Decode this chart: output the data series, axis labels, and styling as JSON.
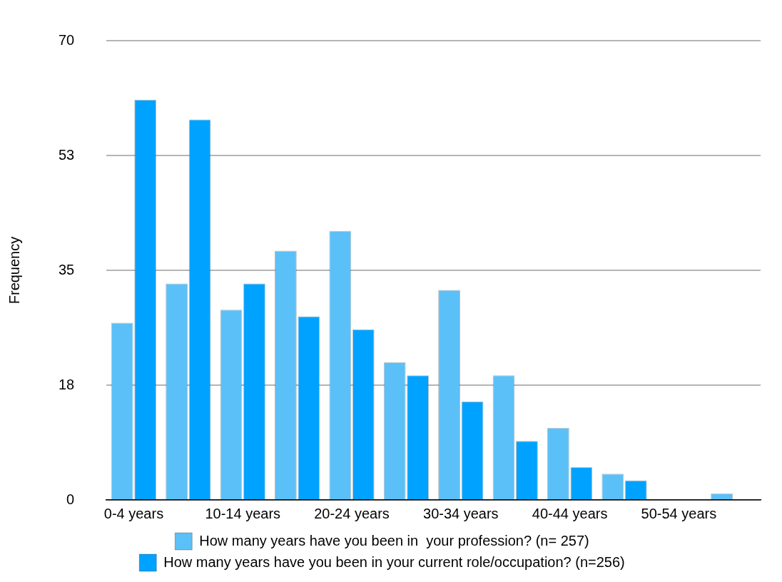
{
  "chart_data": {
    "type": "bar",
    "ylabel": "Frequency",
    "categories": [
      "0-4 years",
      null,
      "10-14 years",
      null,
      "20-24 years",
      null,
      "30-34 years",
      null,
      "40-44 years",
      null,
      "50-54 years",
      null
    ],
    "series": [
      {
        "name": "How many years have you been in  your profession? (n= 257)",
        "color": "#5bc0f8",
        "values": [
          27,
          33,
          29,
          38,
          41,
          21,
          32,
          19,
          11,
          4,
          0,
          1
        ]
      },
      {
        "name": "How many years have you been in your current role/occupation? (n=256)",
        "color": "#00a2ff",
        "values": [
          61,
          58,
          33,
          28,
          26,
          19,
          15,
          9,
          5,
          3,
          0,
          0
        ]
      }
    ],
    "ylim": [
      0,
      70
    ],
    "yticks": [
      0,
      {
        "value": 17.5,
        "label": "18"
      },
      35,
      {
        "value": 52.5,
        "label": "53"
      },
      70
    ],
    "grid": "y",
    "legend": "bottom"
  }
}
